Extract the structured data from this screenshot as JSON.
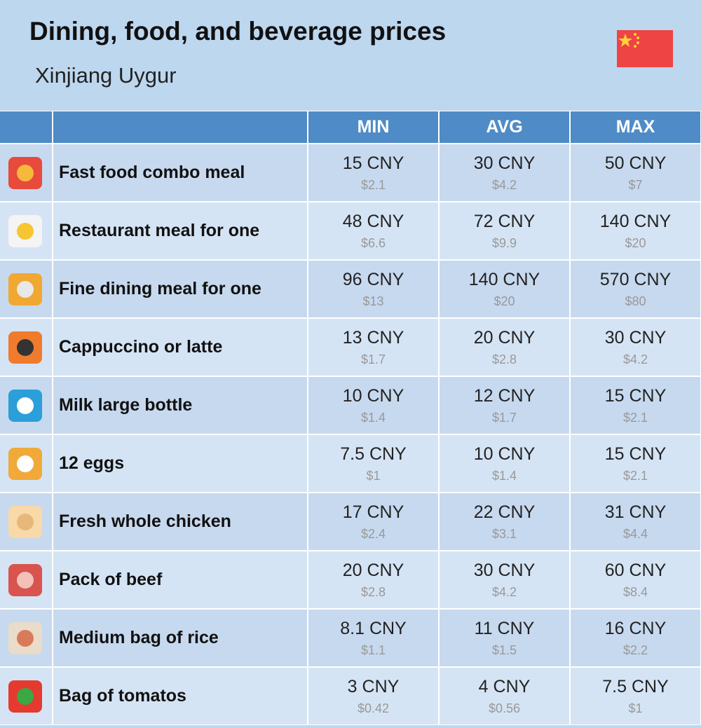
{
  "header": {
    "title": "Dining, food, and beverage prices",
    "subtitle": "Xinjiang Uygur"
  },
  "table": {
    "columns": [
      "MIN",
      "AVG",
      "MAX"
    ],
    "rows": [
      {
        "label": "Fast food combo meal",
        "min": {
          "local": "15 CNY",
          "usd": "$2.1"
        },
        "avg": {
          "local": "30 CNY",
          "usd": "$4.2"
        },
        "max": {
          "local": "50 CNY",
          "usd": "$7"
        }
      },
      {
        "label": "Restaurant meal for one",
        "min": {
          "local": "48 CNY",
          "usd": "$6.6"
        },
        "avg": {
          "local": "72 CNY",
          "usd": "$9.9"
        },
        "max": {
          "local": "140 CNY",
          "usd": "$20"
        }
      },
      {
        "label": "Fine dining meal for one",
        "min": {
          "local": "96 CNY",
          "usd": "$13"
        },
        "avg": {
          "local": "140 CNY",
          "usd": "$20"
        },
        "max": {
          "local": "570 CNY",
          "usd": "$80"
        }
      },
      {
        "label": "Cappuccino or latte",
        "min": {
          "local": "13 CNY",
          "usd": "$1.7"
        },
        "avg": {
          "local": "20 CNY",
          "usd": "$2.8"
        },
        "max": {
          "local": "30 CNY",
          "usd": "$4.2"
        }
      },
      {
        "label": "Milk large bottle",
        "min": {
          "local": "10 CNY",
          "usd": "$1.4"
        },
        "avg": {
          "local": "12 CNY",
          "usd": "$1.7"
        },
        "max": {
          "local": "15 CNY",
          "usd": "$2.1"
        }
      },
      {
        "label": "12 eggs",
        "min": {
          "local": "7.5 CNY",
          "usd": "$1"
        },
        "avg": {
          "local": "10 CNY",
          "usd": "$1.4"
        },
        "max": {
          "local": "15 CNY",
          "usd": "$2.1"
        }
      },
      {
        "label": "Fresh whole chicken",
        "min": {
          "local": "17 CNY",
          "usd": "$2.4"
        },
        "avg": {
          "local": "22 CNY",
          "usd": "$3.1"
        },
        "max": {
          "local": "31 CNY",
          "usd": "$4.4"
        }
      },
      {
        "label": "Pack of beef",
        "min": {
          "local": "20 CNY",
          "usd": "$2.8"
        },
        "avg": {
          "local": "30 CNY",
          "usd": "$4.2"
        },
        "max": {
          "local": "60 CNY",
          "usd": "$8.4"
        }
      },
      {
        "label": "Medium bag of rice",
        "min": {
          "local": "8.1 CNY",
          "usd": "$1.1"
        },
        "avg": {
          "local": "11 CNY",
          "usd": "$1.5"
        },
        "max": {
          "local": "16 CNY",
          "usd": "$2.2"
        }
      },
      {
        "label": "Bag of tomatos",
        "min": {
          "local": "3 CNY",
          "usd": "$0.42"
        },
        "avg": {
          "local": "4 CNY",
          "usd": "$0.56"
        },
        "max": {
          "local": "7.5 CNY",
          "usd": "$1"
        }
      }
    ]
  }
}
